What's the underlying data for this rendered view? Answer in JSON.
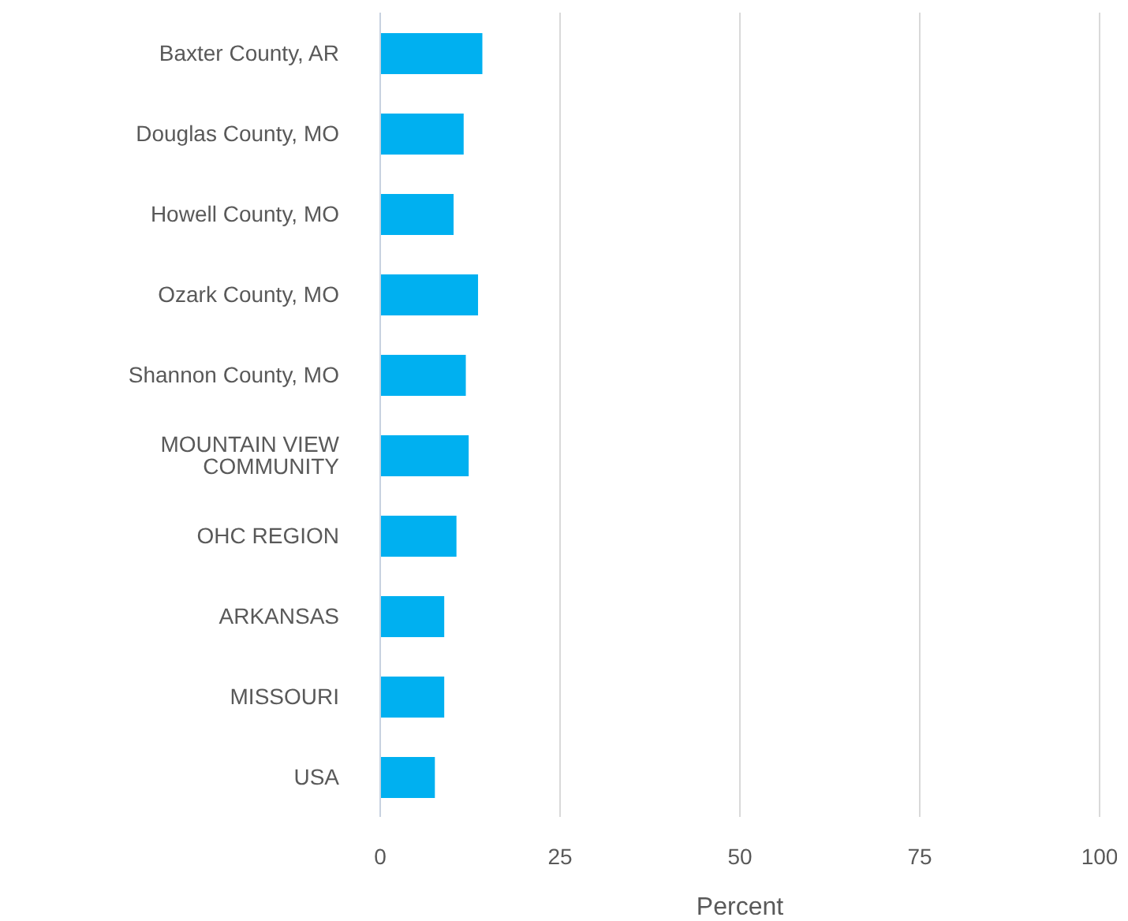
{
  "chart_data": {
    "type": "bar",
    "orientation": "horizontal",
    "xlabel": "Percent",
    "categories": [
      "Baxter County, AR",
      "Douglas County, MO",
      "Howell County, MO",
      "Ozark County, MO",
      "Shannon County, MO",
      "MOUNTAIN VIEW COMMUNITY",
      "OHC REGION",
      "ARKANSAS",
      "MISSOURI",
      "USA"
    ],
    "values": [
      14.2,
      11.6,
      10.2,
      13.6,
      11.9,
      12.3,
      10.6,
      8.9,
      8.9,
      7.6
    ],
    "color": "#00b0f0",
    "xlim": [
      0,
      100
    ],
    "xticks": [
      0,
      25,
      50,
      75,
      100
    ],
    "grid": "x",
    "legend": false
  }
}
